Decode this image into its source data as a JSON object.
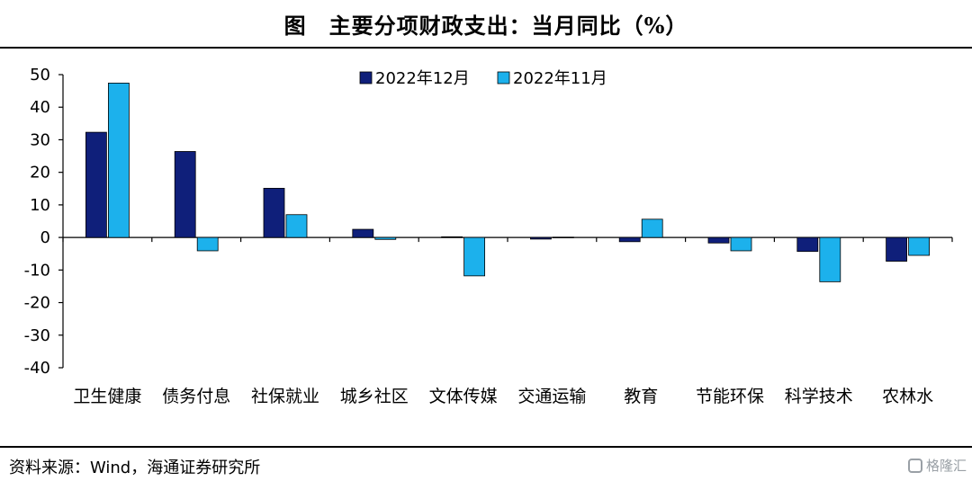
{
  "title": "图　主要分项财政支出：当月同比（%）",
  "source": "资料来源：Wind，海通证券研究所",
  "watermark": "格隆汇",
  "colors": {
    "series_dec": "#0f1f7a",
    "series_nov": "#1cb1ec"
  },
  "chart_data": {
    "type": "bar",
    "categories": [
      "卫生健康",
      "债务付息",
      "社保就业",
      "城乡社区",
      "文体传媒",
      "交通运输",
      "教育",
      "节能环保",
      "科学技术",
      "农林水"
    ],
    "series": [
      {
        "name": "2022年12月",
        "values": [
          32.3,
          26.4,
          15.1,
          2.5,
          0.2,
          -0.5,
          -1.3,
          -1.7,
          -4.3,
          -7.3
        ]
      },
      {
        "name": "2022年11月",
        "values": [
          47.4,
          -4.1,
          7.0,
          -0.6,
          -11.8,
          0.1,
          5.6,
          -4.1,
          -13.6,
          -5.5
        ]
      }
    ],
    "ylim": [
      -40,
      50
    ],
    "yticks": [
      50,
      40,
      30,
      20,
      10,
      0,
      -10,
      -20,
      -30,
      -40
    ],
    "xlabel": "",
    "ylabel": "",
    "legend": "top-center",
    "grid": false
  }
}
